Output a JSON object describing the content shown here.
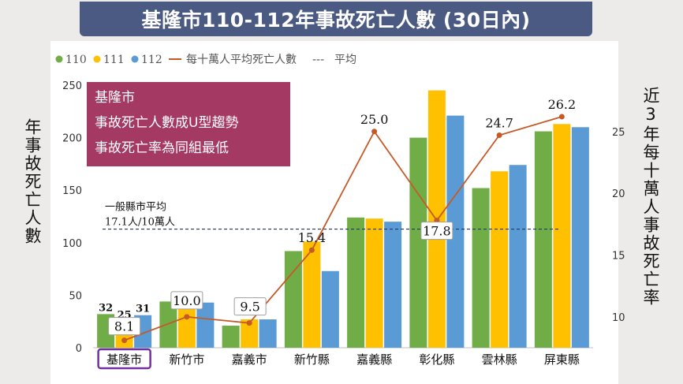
{
  "header": {
    "title": "基隆市110-112年事故死亡人數 (30日內)"
  },
  "left_axis_label": "年事故死亡人數",
  "right_axis_label": "近3年每十萬人事故死亡率",
  "callout": {
    "lines": [
      "基隆市",
      "事故死亡人數成U型趨勢",
      "事故死亡率為同組最低"
    ]
  },
  "average_annotation": {
    "line1": "一般縣市平均",
    "line2": "17.1人/10萬人"
  },
  "colors": {
    "y110": "#70ad47",
    "y111": "#ffc000",
    "y112": "#5b9bd5",
    "rate_line": "#c55a29",
    "average_line": "#1f3864",
    "callout_bg": "#a43a63",
    "highlight_border": "#7030a0"
  },
  "chart_data": {
    "type": "bar",
    "categories": [
      "基隆市",
      "新竹市",
      "嘉義市",
      "新竹縣",
      "嘉義縣",
      "彰化縣",
      "雲林縣",
      "屏東縣"
    ],
    "highlight_category": "基隆市",
    "series": [
      {
        "name": "110",
        "values": [
          32,
          44,
          21,
          92,
          124,
          200,
          152,
          206
        ]
      },
      {
        "name": "111",
        "values": [
          25,
          49,
          27,
          101,
          123,
          245,
          168,
          213
        ]
      },
      {
        "name": "112",
        "values": [
          31,
          43,
          27,
          73,
          120,
          221,
          174,
          210
        ]
      }
    ],
    "bar_value_labels": {
      "基隆市": [
        "32",
        "25",
        "31"
      ]
    },
    "line_series": {
      "name": "每十萬人平均死亡人數",
      "axis": "right",
      "values": [
        8.1,
        10.0,
        9.5,
        15.4,
        25.0,
        17.8,
        24.7,
        26.2
      ],
      "labels": [
        "8.1",
        "10.0",
        "9.5",
        "15.4",
        "25.0",
        "17.8",
        "24.7",
        "26.2"
      ]
    },
    "average": {
      "name": "平均",
      "value": 17.1,
      "axis": "right"
    },
    "legend": {
      "placement": "top-left",
      "items": [
        "110",
        "111",
        "112",
        "每十萬人平均死亡人數",
        "平均"
      ]
    },
    "y_left": {
      "ylim": [
        0,
        250
      ],
      "ticks": [
        0,
        50,
        100,
        150,
        200,
        250
      ]
    },
    "y_right": {
      "ylim": [
        7.5,
        28.75
      ],
      "ticks": [
        10,
        15,
        20,
        25
      ]
    },
    "grid": false
  }
}
